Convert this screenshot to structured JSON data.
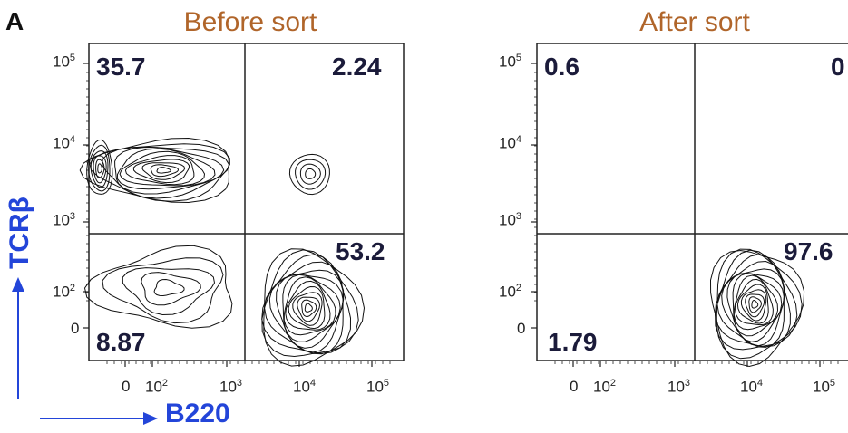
{
  "panel_label": "A",
  "axis_x_label": "B220",
  "axis_y_label": "TCRβ",
  "colors": {
    "title": "#b0652a",
    "axis_label": "#2345d9",
    "quadrant_text": "#1b1b3a",
    "contour": "#111111"
  },
  "chart_data": [
    {
      "type": "contour",
      "title": "Before sort",
      "xlabel": "B220",
      "ylabel": "TCRβ",
      "scale": "biexponential",
      "x_ticks": [
        "0",
        "10^2",
        "10^3",
        "10^4",
        "10^5"
      ],
      "y_ticks": [
        "0",
        "10^2",
        "10^3",
        "10^4",
        "10^5"
      ],
      "quadrants": {
        "top_left": "35.7",
        "top_right": "2.24",
        "bottom_right": "53.2",
        "bottom_left": "8.87"
      },
      "populations": [
        {
          "name": "TCRβ+ B220-",
          "x_center": "~10^2",
          "y_center": "~10^3.6"
        },
        {
          "name": "TCRβ+ B220+",
          "x_center": "~10^4",
          "y_center": "~10^3.5"
        },
        {
          "name": "TCRβ- B220+",
          "x_center": "~10^4",
          "y_center": "~10^1.5"
        },
        {
          "name": "TCRβ- B220-",
          "x_center": "~10^2",
          "y_center": "~10^2"
        }
      ]
    },
    {
      "type": "contour",
      "title": "After sort",
      "xlabel": "B220",
      "ylabel": "TCRβ",
      "scale": "biexponential",
      "x_ticks": [
        "0",
        "10^2",
        "10^3",
        "10^4",
        "10^5"
      ],
      "y_ticks": [
        "0",
        "10^2",
        "10^3",
        "10^4",
        "10^5"
      ],
      "quadrants": {
        "top_left": "0.6",
        "top_right": "0",
        "bottom_right": "97.6",
        "bottom_left": "1.79"
      },
      "populations": [
        {
          "name": "TCRβ- B220+",
          "x_center": "~10^4",
          "y_center": "~10^1.5"
        }
      ]
    }
  ]
}
